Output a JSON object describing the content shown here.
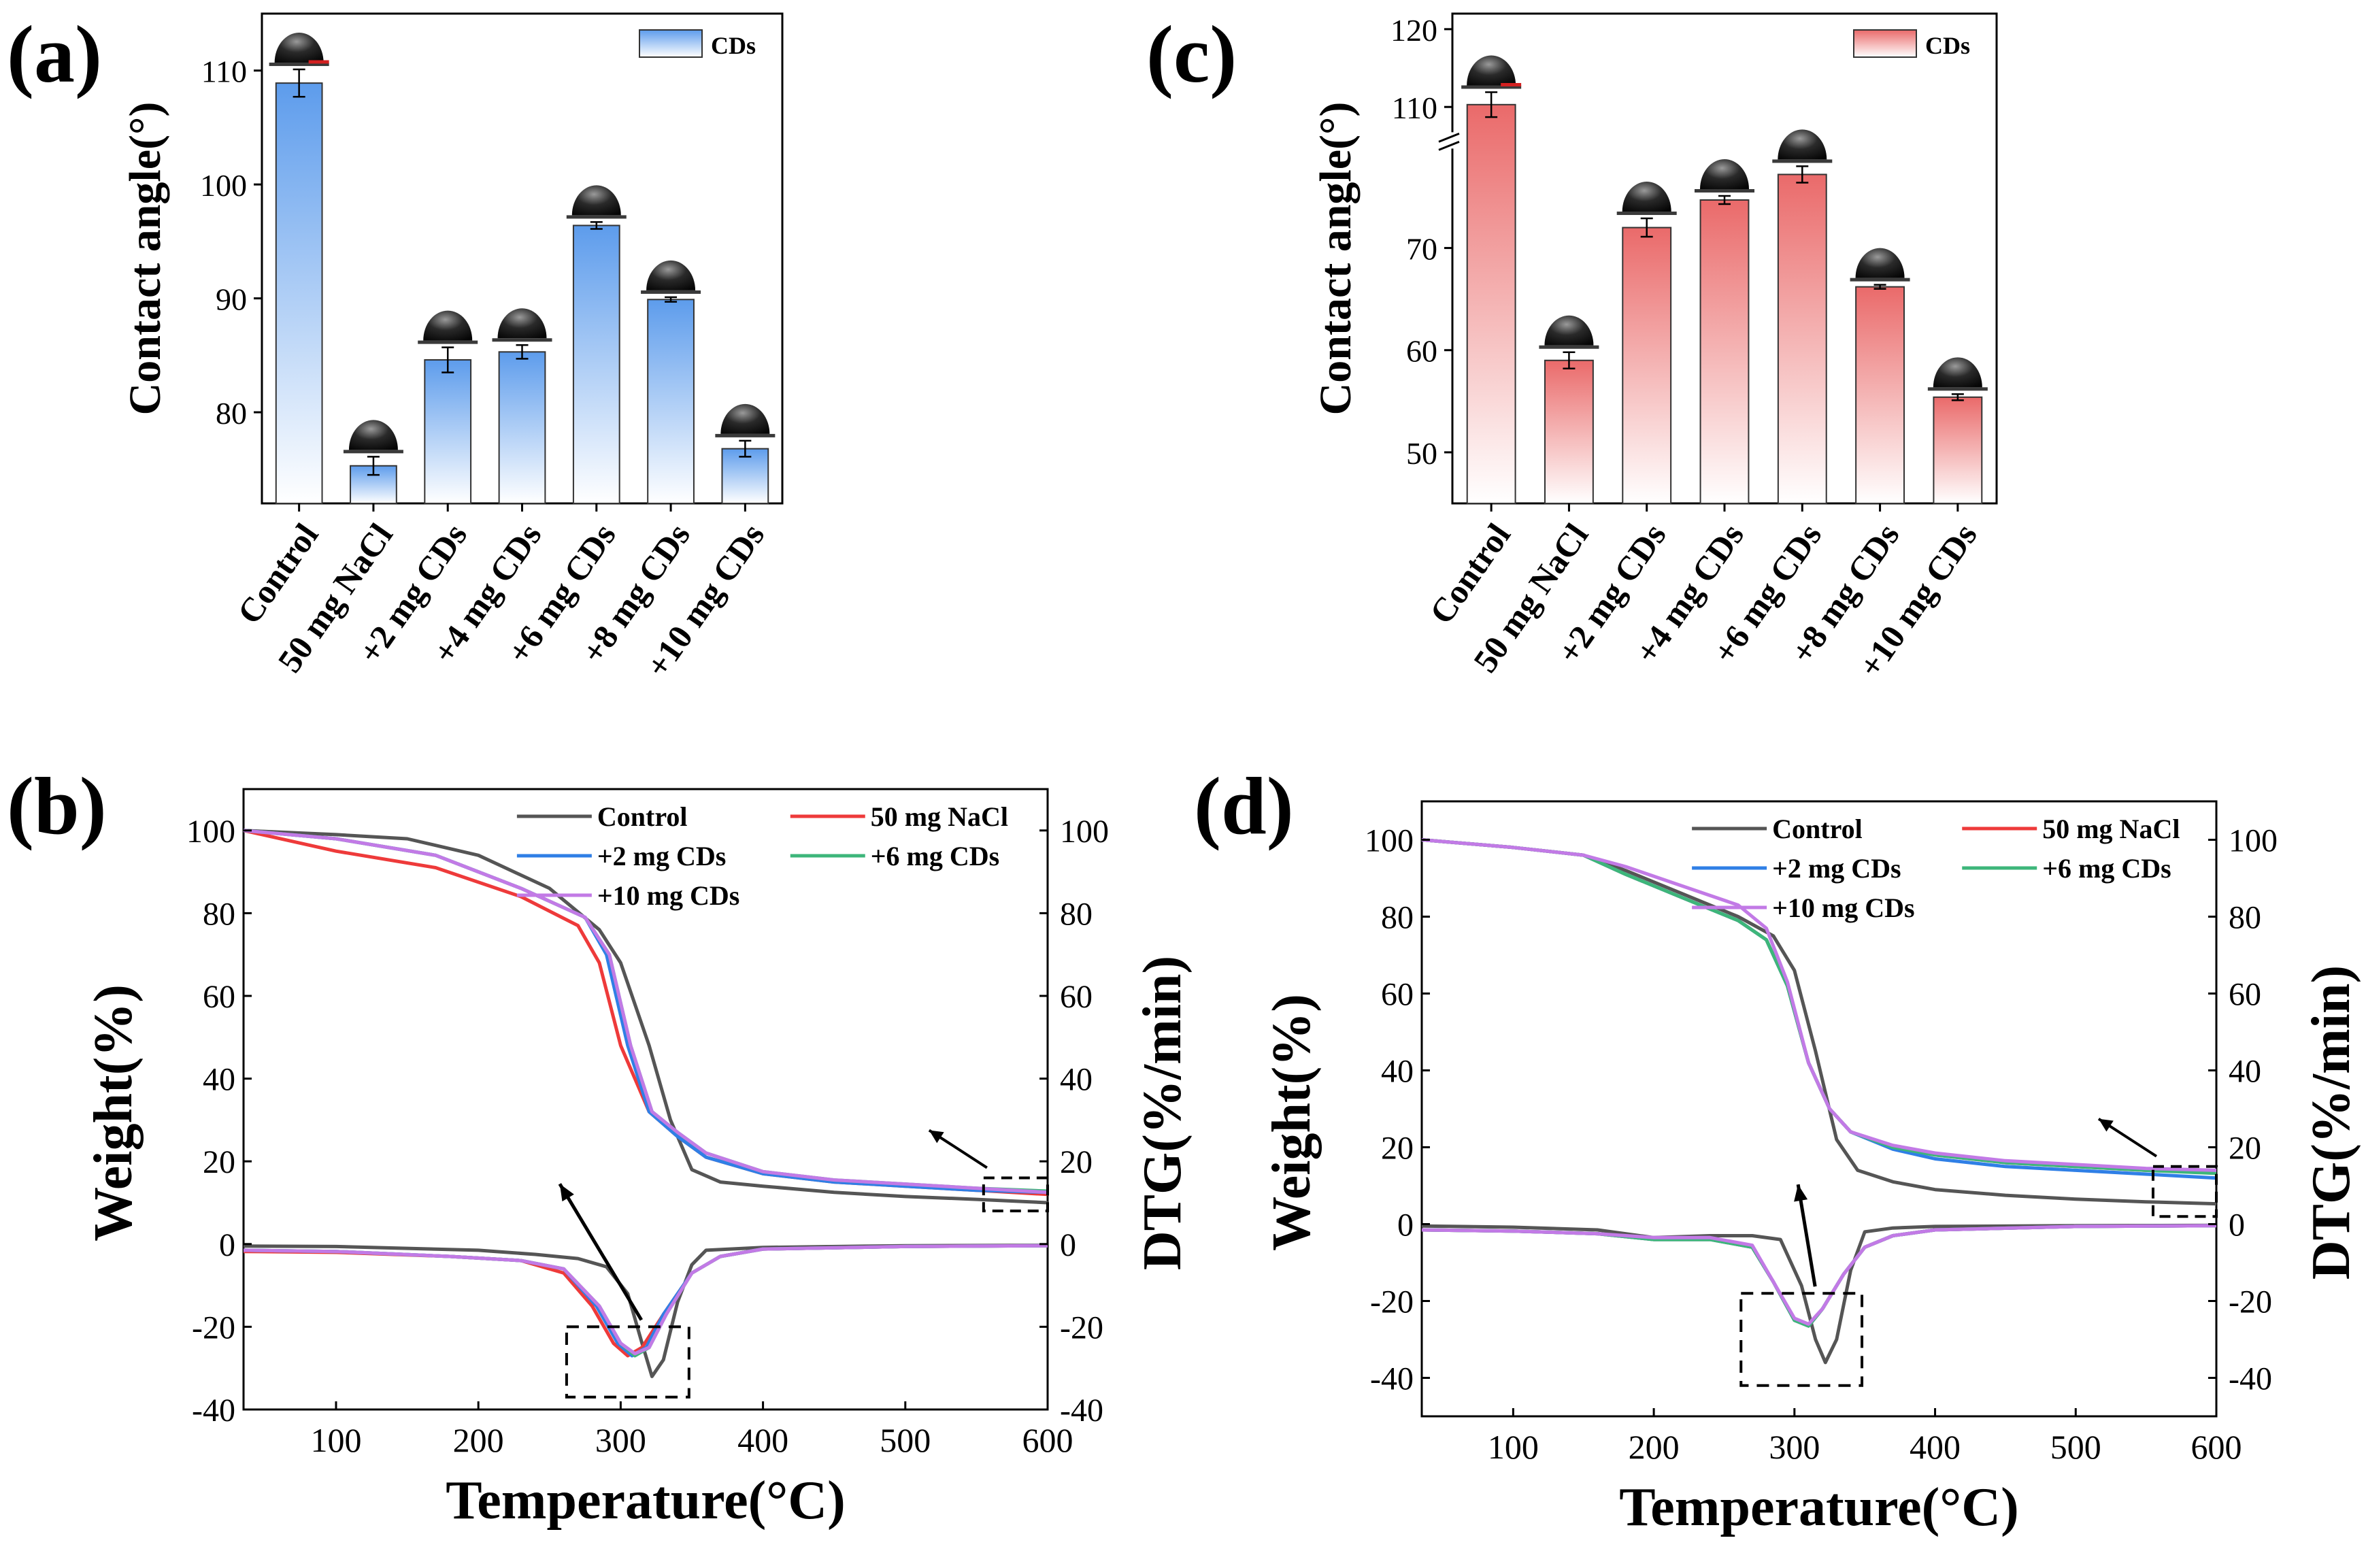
{
  "colors": {
    "axis": "#000000",
    "blue_bar_top": "#5d9cec",
    "red_bar_top": "#ea6a6a",
    "control": "#555555",
    "nacl": "#ee3a3a",
    "cds2": "#2f7fe6",
    "cds6": "#3db67a",
    "cds10": "#c27ae6"
  },
  "chart_data": [
    {
      "panel": "(a)",
      "type": "bar",
      "title": "",
      "ylabel": "Contact angle(°)",
      "xlabel": "",
      "ylim": [
        72,
        115
      ],
      "yticks": [
        80,
        90,
        100,
        110
      ],
      "legend": "CDs",
      "legend_position": "top-right",
      "categories": [
        "Control",
        "50 mg NaCl",
        "+2 mg CDs",
        "+4 mg CDs",
        "+6 mg CDs",
        "+8 mg CDs",
        "+10 mg CDs"
      ],
      "values": [
        108.9,
        75.3,
        84.6,
        85.3,
        96.4,
        89.9,
        76.8
      ],
      "errors": [
        1.2,
        0.8,
        1.1,
        0.6,
        0.3,
        0.2,
        0.7
      ]
    },
    {
      "panel": "(c)",
      "type": "bar",
      "title": "",
      "ylabel": "Contact angle(°)",
      "xlabel": "",
      "ylim": [
        45,
        122
      ],
      "y_axis_break": [
        80,
        105
      ],
      "yticks": [
        50,
        60,
        70,
        110,
        120
      ],
      "legend": "CDs",
      "legend_position": "top-right",
      "categories": [
        "Control",
        "50 mg NaCl",
        "+2 mg CDs",
        "+4 mg CDs",
        "+6 mg CDs",
        "+8 mg CDs",
        "+10 mg CDs"
      ],
      "values": [
        110.3,
        59.0,
        72.0,
        74.7,
        77.2,
        66.2,
        55.4
      ],
      "errors": [
        1.6,
        0.8,
        0.9,
        0.4,
        0.8,
        0.2,
        0.3
      ]
    },
    {
      "panel": "(b)",
      "type": "line",
      "xlabel": "Temperature(°C)",
      "ylabel": "Weight(%)",
      "y2label": "DTG(%/min)",
      "xlim": [
        35,
        600
      ],
      "ylim": [
        -40,
        110
      ],
      "y2lim": [
        -40,
        110
      ],
      "xticks": [
        100,
        200,
        300,
        400,
        500,
        600
      ],
      "yticks": [
        -40,
        -20,
        0,
        20,
        40,
        60,
        80,
        100
      ],
      "y2ticks": [
        -40,
        -20,
        0,
        20,
        40,
        60,
        80,
        100
      ],
      "legend_position": "top-right",
      "series": [
        {
          "name": "Control",
          "color_key": "control",
          "tg": {
            "x": [
              35,
              100,
              150,
              200,
              250,
              285,
              300,
              320,
              335,
              350,
              370,
              400,
              450,
              500,
              550,
              600
            ],
            "y": [
              100,
              99,
              98,
              94,
              86,
              76,
              68,
              48,
              30,
              18,
              15,
              14,
              12.5,
              11.5,
              10.8,
              10
            ]
          },
          "dtg": {
            "x": [
              35,
              100,
              200,
              240,
              270,
              290,
              305,
              315,
              322,
              330,
              340,
              350,
              360,
              400,
              500,
              600
            ],
            "y": [
              -0.5,
              -0.6,
              -1.5,
              -2.5,
              -3.5,
              -5.5,
              -12,
              -24,
              -32,
              -28,
              -14,
              -5,
              -1.5,
              -0.8,
              -0.4,
              -0.3
            ]
          }
        },
        {
          "name": "50 mg NaCl",
          "color_key": "nacl",
          "tg": {
            "x": [
              35,
              100,
              170,
              230,
              270,
              285,
              300,
              320,
              340,
              360,
              400,
              450,
              500,
              550,
              600
            ],
            "y": [
              100,
              95,
              91,
              84,
              77,
              68,
              48,
              32,
              26,
              21,
              17,
              15,
              14,
              13,
              12
            ]
          },
          "dtg": {
            "x": [
              35,
              100,
              180,
              230,
              260,
              280,
              295,
              305,
              315,
              330,
              350,
              370,
              400,
              500,
              600
            ],
            "y": [
              -1.8,
              -2,
              -3,
              -4,
              -7,
              -15,
              -24,
              -27,
              -25,
              -17,
              -7,
              -3,
              -1.2,
              -0.6,
              -0.4
            ]
          }
        },
        {
          "name": "+2 mg CDs",
          "color_key": "cds2",
          "tg": {
            "x": [
              35,
              100,
              170,
              230,
              275,
              290,
              305,
              320,
              340,
              360,
              400,
              450,
              500,
              550,
              600
            ],
            "y": [
              100,
              98,
              94,
              86,
              79,
              70,
              48,
              32,
              26,
              21,
              17,
              15,
              14,
              13,
              12.5
            ]
          },
          "dtg": {
            "x": [
              35,
              100,
              180,
              230,
              260,
              283,
              298,
              308,
              318,
              330,
              350,
              370,
              400,
              500,
              600
            ],
            "y": [
              -1.5,
              -1.8,
              -3,
              -4,
              -6,
              -15,
              -24,
              -27,
              -25,
              -17,
              -7,
              -3,
              -1.2,
              -0.6,
              -0.4
            ]
          }
        },
        {
          "name": "+6 mg CDs",
          "color_key": "cds6",
          "tg": {
            "x": [
              35,
              100,
              170,
              230,
              275,
              292,
              307,
              322,
              340,
              360,
              400,
              450,
              500,
              550,
              600
            ],
            "y": [
              100,
              98,
              94,
              86,
              79,
              70,
              48,
              32,
              27,
              22,
              17.5,
              15.5,
              14.5,
              13.5,
              12.8
            ]
          },
          "dtg": {
            "x": [
              35,
              100,
              180,
              230,
              260,
              285,
              300,
              310,
              320,
              332,
              350,
              370,
              400,
              500,
              600
            ],
            "y": [
              -1.5,
              -1.8,
              -3,
              -4,
              -6,
              -15,
              -24,
              -27,
              -25,
              -17,
              -7,
              -3,
              -1.2,
              -0.6,
              -0.4
            ]
          }
        },
        {
          "name": "+10 mg CDs",
          "color_key": "cds10",
          "tg": {
            "x": [
              35,
              100,
              170,
              230,
              275,
              292,
              307,
              322,
              340,
              360,
              400,
              450,
              500,
              550,
              600
            ],
            "y": [
              100,
              98,
              94,
              86,
              79,
              70,
              48,
              32,
              27,
              22,
              17.5,
              15.5,
              14.5,
              13.5,
              12.5
            ]
          },
          "dtg": {
            "x": [
              35,
              100,
              180,
              230,
              260,
              285,
              300,
              310,
              320,
              332,
              350,
              370,
              400,
              500,
              600
            ],
            "y": [
              -1.5,
              -1.8,
              -3,
              -4,
              -6,
              -15,
              -24,
              -26.5,
              -25,
              -17,
              -7,
              -3,
              -1.2,
              -0.6,
              -0.4
            ]
          }
        }
      ]
    },
    {
      "panel": "(d)",
      "type": "line",
      "xlabel": "Temperature(°C)",
      "ylabel": "Weight(%)",
      "y2label": "DTG(%/min)",
      "xlim": [
        35,
        600
      ],
      "ylim": [
        -50,
        110
      ],
      "y2lim": [
        -50,
        110
      ],
      "xticks": [
        100,
        200,
        300,
        400,
        500,
        600
      ],
      "yticks": [
        -40,
        -20,
        0,
        20,
        40,
        60,
        80,
        100
      ],
      "y2ticks": [
        -40,
        -20,
        0,
        20,
        40,
        60,
        80,
        100
      ],
      "legend_position": "top-right",
      "series": [
        {
          "name": "Control",
          "color_key": "control",
          "tg": {
            "x": [
              35,
              100,
              150,
              180,
              220,
              260,
              285,
              300,
              315,
              330,
              345,
              370,
              400,
              450,
              500,
              550,
              600
            ],
            "y": [
              100,
              98,
              96,
              92,
              86,
              80,
              75,
              66,
              45,
              22,
              14,
              11,
              9,
              7.5,
              6.5,
              5.8,
              5.3
            ]
          },
          "dtg": {
            "x": [
              35,
              100,
              160,
              200,
              240,
              270,
              290,
              305,
              315,
              322,
              330,
              340,
              350,
              370,
              400,
              500,
              600
            ],
            "y": [
              -0.5,
              -0.8,
              -1.5,
              -3.5,
              -3,
              -3,
              -4,
              -16,
              -30,
              -36,
              -30,
              -12,
              -2,
              -1,
              -0.6,
              -0.4,
              -0.3
            ]
          }
        },
        {
          "name": "50 mg NaCl",
          "color_key": "nacl",
          "tg": {
            "x": [
              35,
              100,
              150,
              180,
              220,
              260,
              280,
              295,
              310,
              325,
              340,
              370,
              400,
              450,
              500,
              550,
              600
            ],
            "y": [
              100,
              98,
              96,
              91,
              85,
              79,
              74,
              62,
              42,
              30,
              24,
              20,
              18,
              16,
              15,
              14,
              13.5
            ]
          },
          "dtg": {
            "x": [
              35,
              100,
              160,
              200,
              240,
              270,
              285,
              300,
              310,
              320,
              335,
              350,
              370,
              400,
              500,
              600
            ],
            "y": [
              -1.5,
              -1.8,
              -2.5,
              -4,
              -4,
              -6,
              -15,
              -25,
              -26.5,
              -22,
              -13,
              -6,
              -3,
              -1.5,
              -0.6,
              -0.4
            ]
          }
        },
        {
          "name": "+2 mg CDs",
          "color_key": "cds2",
          "tg": {
            "x": [
              35,
              100,
              150,
              180,
              220,
              260,
              280,
              295,
              310,
              325,
              340,
              370,
              400,
              450,
              500,
              550,
              600
            ],
            "y": [
              100,
              98,
              96,
              91,
              85,
              79,
              74,
              62,
              42,
              30,
              24,
              19.5,
              17,
              15,
              14,
              13,
              12
            ]
          },
          "dtg": {
            "x": [
              35,
              100,
              160,
              200,
              240,
              270,
              285,
              300,
              310,
              320,
              335,
              350,
              370,
              400,
              500,
              600
            ],
            "y": [
              -1.5,
              -1.8,
              -2.5,
              -4,
              -4,
              -6,
              -15,
              -25,
              -26.5,
              -22,
              -13,
              -6,
              -3,
              -1.5,
              -0.6,
              -0.4
            ]
          }
        },
        {
          "name": "+6 mg CDs",
          "color_key": "cds6",
          "tg": {
            "x": [
              35,
              100,
              150,
              180,
              220,
              260,
              280,
              295,
              310,
              325,
              340,
              370,
              400,
              450,
              500,
              550,
              600
            ],
            "y": [
              100,
              98,
              96,
              91,
              85,
              79,
              74,
              62,
              42,
              30,
              24,
              20,
              18,
              16,
              15,
              14,
              13.2
            ]
          },
          "dtg": {
            "x": [
              35,
              100,
              160,
              200,
              240,
              270,
              285,
              300,
              310,
              320,
              335,
              350,
              370,
              400,
              500,
              600
            ],
            "y": [
              -1.5,
              -1.8,
              -2.5,
              -4,
              -4,
              -6,
              -15,
              -25,
              -26.5,
              -22,
              -13,
              -6,
              -3,
              -1.5,
              -0.6,
              -0.4
            ]
          }
        },
        {
          "name": "+10 mg CDs",
          "color_key": "cds10",
          "tg": {
            "x": [
              35,
              100,
              150,
              180,
              220,
              260,
              280,
              295,
              310,
              325,
              340,
              370,
              400,
              450,
              500,
              550,
              600
            ],
            "y": [
              100,
              98,
              96,
              93,
              88,
              83,
              77,
              63,
              42,
              30,
              24,
              20.5,
              18.5,
              16.5,
              15.5,
              14.5,
              14
            ]
          },
          "dtg": {
            "x": [
              35,
              100,
              160,
              200,
              240,
              270,
              285,
              300,
              310,
              320,
              335,
              350,
              370,
              400,
              500,
              600
            ],
            "y": [
              -1.5,
              -1.8,
              -2.5,
              -3.5,
              -3.5,
              -5.5,
              -15,
              -24.5,
              -26,
              -22,
              -13,
              -6,
              -3,
              -1.5,
              -0.6,
              -0.4
            ]
          }
        }
      ]
    }
  ]
}
